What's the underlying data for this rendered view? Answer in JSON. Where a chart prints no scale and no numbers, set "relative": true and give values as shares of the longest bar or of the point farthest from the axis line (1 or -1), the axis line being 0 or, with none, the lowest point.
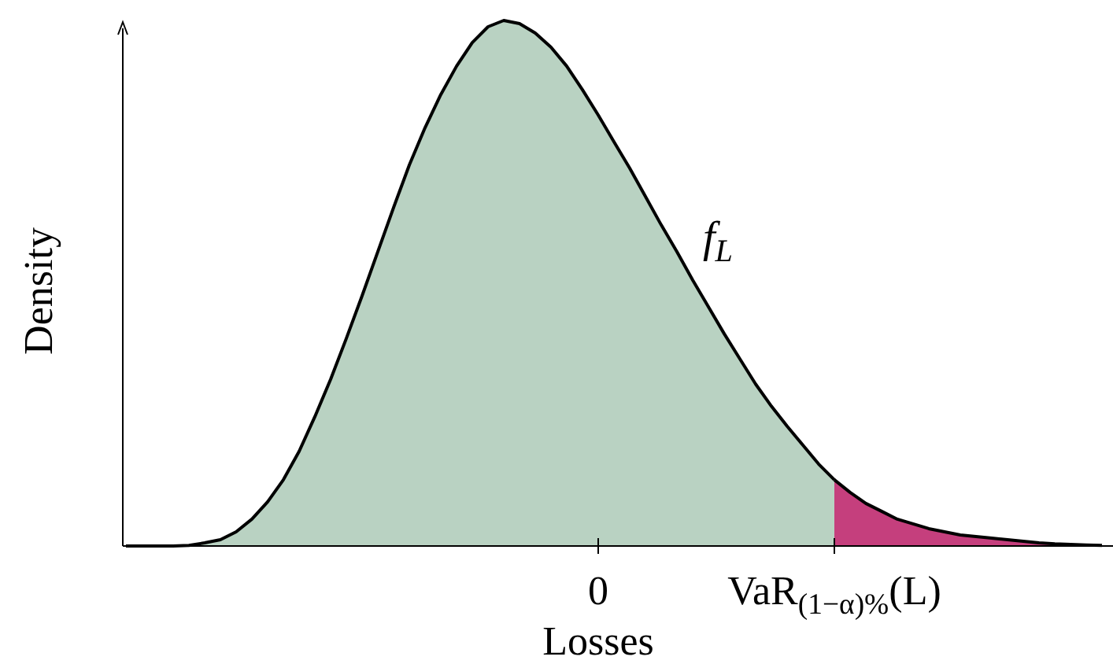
{
  "chart_data": {
    "type": "area",
    "relative": true,
    "xlabel": "Losses",
    "ylabel": "Density",
    "categories": [
      null,
      null,
      null,
      null,
      null,
      null,
      null,
      null,
      null,
      null,
      null,
      null,
      null,
      null,
      null,
      null,
      null,
      null,
      null,
      null,
      null,
      null,
      null,
      null,
      null,
      null,
      null,
      null,
      null,
      null,
      "0",
      null,
      null,
      null,
      null,
      null,
      null,
      null,
      null,
      null,
      null,
      null,
      null,
      null,
      null,
      "VaR$_{(1−α)%}$(L)",
      null,
      null,
      null,
      null,
      null,
      null,
      null,
      null,
      null,
      null,
      null,
      null,
      null,
      null,
      null,
      null,
      null
    ],
    "annotations": [
      "f$_{L}$"
    ],
    "series": [
      {
        "color": "#b9d2c2",
        "values": [
          0,
          0,
          0,
          0,
          0.001,
          0.006,
          0.012,
          0.027,
          0.051,
          0.084,
          0.126,
          0.18,
          0.246,
          0.317,
          0.395,
          0.476,
          0.56,
          0.644,
          0.725,
          0.796,
          0.859,
          0.913,
          0.958,
          0.988,
          1,
          0.994,
          0.976,
          0.949,
          0.913,
          0.868,
          0.82,
          0.769,
          0.719,
          0.665,
          0.611,
          0.56,
          0.506,
          0.455,
          0.404,
          0.356,
          0.308,
          0.266,
          0.228,
          0.192,
          0.156,
          0.126,
          null,
          null,
          null,
          null,
          null,
          null,
          null,
          null,
          null,
          null,
          null,
          null,
          null,
          null,
          null,
          null,
          null
        ]
      },
      {
        "color": "#c53f7d",
        "values": [
          null,
          null,
          null,
          null,
          null,
          null,
          null,
          null,
          null,
          null,
          null,
          null,
          null,
          null,
          null,
          null,
          null,
          null,
          null,
          null,
          null,
          null,
          null,
          null,
          null,
          null,
          null,
          null,
          null,
          null,
          null,
          null,
          null,
          null,
          null,
          null,
          null,
          null,
          null,
          null,
          null,
          null,
          null,
          null,
          null,
          0.126,
          0.102,
          0.081,
          0.066,
          0.051,
          0.042,
          0.033,
          0.027,
          0.021,
          0.018,
          0.015,
          0.012,
          0.009,
          0.006,
          0.004,
          0.003,
          0.002,
          0.001
        ]
      }
    ]
  }
}
